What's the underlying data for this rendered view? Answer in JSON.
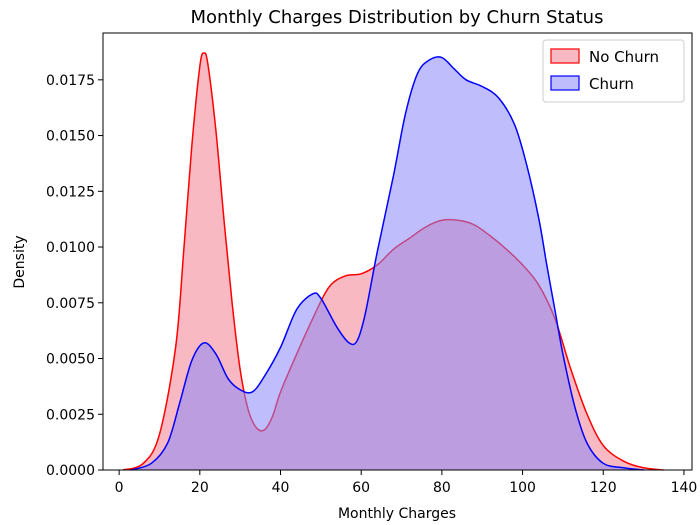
{
  "chart_data": {
    "type": "area",
    "title": "Monthly Charges Distribution by Churn Status",
    "xlabel": "Monthly Charges",
    "ylabel": "Density",
    "xlim": [
      -4,
      142
    ],
    "ylim": [
      0,
      0.0196
    ],
    "xticks": [
      0,
      20,
      40,
      60,
      80,
      100,
      120,
      140
    ],
    "yticks": [
      0.0,
      0.0025,
      0.005,
      0.0075,
      0.01,
      0.0125,
      0.015,
      0.0175
    ],
    "ytick_labels": [
      "0.0000",
      "0.0025",
      "0.0050",
      "0.0075",
      "0.0100",
      "0.0125",
      "0.0150",
      "0.0175"
    ],
    "grid": false,
    "legend_position": "top-right",
    "series": [
      {
        "name": "No Churn",
        "stroke": "#ff0000",
        "fill": "#f7a1ad",
        "fill_opacity": 0.75,
        "x": [
          1,
          6,
          10,
          14,
          16,
          18,
          20,
          21,
          22,
          24,
          26,
          28,
          30,
          32,
          34,
          36,
          38,
          40,
          44,
          48,
          52,
          56,
          60,
          64,
          68,
          72,
          76,
          80,
          84,
          88,
          92,
          96,
          100,
          104,
          108,
          112,
          116,
          120,
          125,
          130,
          135
        ],
        "y": [
          0.0,
          0.0003,
          0.0016,
          0.0055,
          0.0098,
          0.0145,
          0.0181,
          0.0187,
          0.0182,
          0.0152,
          0.0112,
          0.0075,
          0.0045,
          0.0027,
          0.0019,
          0.0018,
          0.0024,
          0.0035,
          0.0052,
          0.0068,
          0.0082,
          0.0087,
          0.0088,
          0.0092,
          0.0099,
          0.0104,
          0.0109,
          0.0112,
          0.0112,
          0.011,
          0.0105,
          0.0099,
          0.0092,
          0.0083,
          0.0068,
          0.0045,
          0.0025,
          0.0011,
          0.0004,
          0.0001,
          0.0
        ]
      },
      {
        "name": "Churn",
        "stroke": "#0000ff",
        "fill": "#8b87f8",
        "fill_opacity": 0.55,
        "x": [
          3,
          8,
          12,
          15,
          18,
          21,
          24,
          27,
          30,
          33,
          36,
          40,
          44,
          48,
          50,
          54,
          57,
          59,
          61,
          64,
          68,
          71,
          74,
          77,
          80,
          83,
          86,
          90,
          94,
          98,
          101,
          104,
          106,
          108,
          110,
          113,
          116,
          120,
          125,
          130
        ],
        "y": [
          0.0,
          0.0003,
          0.0012,
          0.003,
          0.0049,
          0.0057,
          0.0052,
          0.0041,
          0.0036,
          0.0035,
          0.0042,
          0.0055,
          0.0072,
          0.0079,
          0.0077,
          0.0064,
          0.0057,
          0.0058,
          0.007,
          0.0098,
          0.0132,
          0.016,
          0.0178,
          0.0184,
          0.0185,
          0.018,
          0.0175,
          0.0172,
          0.0167,
          0.0155,
          0.0137,
          0.0113,
          0.0092,
          0.0072,
          0.0052,
          0.0028,
          0.0012,
          0.0003,
          0.0001,
          0.0
        ]
      }
    ]
  }
}
